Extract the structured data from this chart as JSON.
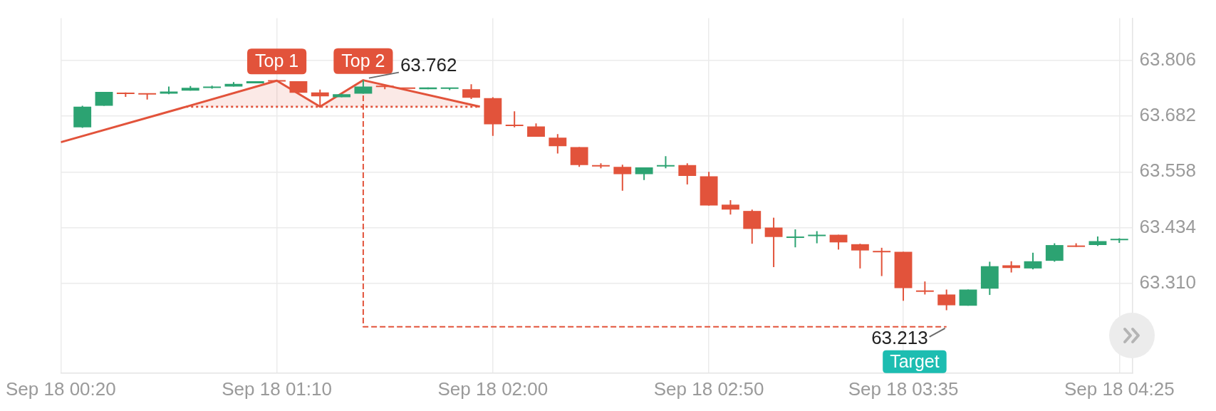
{
  "chart_data": {
    "type": "candlestick",
    "xlim": [
      "--09-18T00:20",
      "--09-18T04:28"
    ],
    "xticks": [
      {
        "value": "--09-18T00:20",
        "label": "Sep 18 00:20"
      },
      {
        "value": "--09-18T01:10",
        "label": "Sep 18 01:10"
      },
      {
        "value": "--09-18T02:00",
        "label": "Sep 18 02:00"
      },
      {
        "value": "--09-18T02:50",
        "label": "Sep 18 02:50"
      },
      {
        "value": "--09-18T03:35",
        "label": "Sep 18 03:35"
      },
      {
        "value": "--09-18T04:25",
        "label": "Sep 18 04:25"
      }
    ],
    "ylim": [
      63.11,
      63.9
    ],
    "yticks": [
      63.806,
      63.682,
      63.558,
      63.434,
      {
        "value": 63.31,
        "label": "63.310"
      }
    ],
    "grid": true,
    "series": [
      {
        "x": [
          "--09-18T00:25",
          "--09-18T00:30",
          "--09-18T00:35",
          "--09-18T00:40",
          "--09-18T00:45",
          "--09-18T00:50",
          "--09-18T00:55",
          "--09-18T01:00",
          "--09-18T01:05",
          "--09-18T01:10",
          "--09-18T01:15",
          "--09-18T01:20",
          "--09-18T01:25",
          "--09-18T01:30",
          "--09-18T01:35",
          "--09-18T01:40",
          "--09-18T01:45",
          "--09-18T01:50",
          "--09-18T01:55",
          "--09-18T02:00",
          "--09-18T02:05",
          "--09-18T02:10",
          "--09-18T02:15",
          "--09-18T02:20",
          "--09-18T02:25",
          "--09-18T02:30",
          "--09-18T02:35",
          "--09-18T02:40",
          "--09-18T02:45",
          "--09-18T02:50",
          "--09-18T02:55",
          "--09-18T03:00",
          "--09-18T03:05",
          "--09-18T03:10",
          "--09-18T03:15",
          "--09-18T03:20",
          "--09-18T03:25",
          "--09-18T03:30",
          "--09-18T03:35",
          "--09-18T03:40",
          "--09-18T03:45",
          "--09-18T03:50",
          "--09-18T03:55",
          "--09-18T04:00",
          "--09-18T04:05",
          "--09-18T04:10",
          "--09-18T04:15",
          "--09-18T04:20",
          "--09-18T04:25"
        ],
        "ohlc": [
          [
            63.657,
            63.705,
            63.656,
            63.703
          ],
          [
            63.705,
            63.736,
            63.705,
            63.736
          ],
          [
            63.734,
            63.735,
            63.725,
            63.732
          ],
          [
            63.732,
            63.732,
            63.719,
            63.731
          ],
          [
            63.732,
            63.748,
            63.731,
            63.737
          ],
          [
            63.739,
            63.749,
            63.739,
            63.745
          ],
          [
            63.745,
            63.75,
            63.743,
            63.748
          ],
          [
            63.748,
            63.758,
            63.748,
            63.754
          ],
          [
            63.755,
            63.76,
            63.755,
            63.76
          ],
          [
            63.761,
            63.761,
            63.76,
            63.76
          ],
          [
            63.76,
            63.76,
            63.734,
            63.734
          ],
          [
            63.735,
            63.741,
            63.703,
            63.726
          ],
          [
            63.724,
            63.732,
            63.724,
            63.731
          ],
          [
            63.732,
            63.762,
            63.732,
            63.748
          ],
          [
            63.75,
            63.751,
            63.742,
            63.747
          ],
          [
            63.745,
            63.745,
            63.744,
            63.744
          ],
          [
            63.742,
            63.746,
            63.742,
            63.746
          ],
          [
            63.744,
            63.745,
            63.74,
            63.745
          ],
          [
            63.742,
            63.753,
            63.72,
            63.723
          ],
          [
            63.722,
            63.724,
            63.638,
            63.664
          ],
          [
            63.662,
            63.693,
            63.657,
            63.661
          ],
          [
            63.659,
            63.666,
            63.636,
            63.636
          ],
          [
            63.634,
            63.642,
            63.599,
            63.615
          ],
          [
            63.613,
            63.613,
            63.569,
            63.573
          ],
          [
            63.572,
            63.577,
            63.566,
            63.571
          ],
          [
            63.569,
            63.574,
            63.516,
            63.553
          ],
          [
            63.553,
            63.568,
            63.54,
            63.568
          ],
          [
            63.571,
            63.593,
            63.566,
            63.572
          ],
          [
            63.573,
            63.577,
            63.53,
            63.549
          ],
          [
            63.548,
            63.558,
            63.483,
            63.483
          ],
          [
            63.485,
            63.495,
            63.463,
            63.474
          ],
          [
            63.471,
            63.474,
            63.398,
            63.431
          ],
          [
            63.434,
            63.456,
            63.346,
            63.413
          ],
          [
            63.412,
            63.43,
            63.39,
            63.413
          ],
          [
            63.416,
            63.426,
            63.399,
            63.417
          ],
          [
            63.418,
            63.418,
            63.385,
            63.401
          ],
          [
            63.397,
            63.398,
            63.343,
            63.383
          ],
          [
            63.381,
            63.389,
            63.326,
            63.38
          ],
          [
            63.38,
            63.38,
            63.271,
            63.299
          ],
          [
            63.293,
            63.314,
            63.285,
            63.292
          ],
          [
            63.285,
            63.296,
            63.25,
            63.261
          ],
          [
            63.26,
            63.296,
            63.26,
            63.296
          ],
          [
            63.298,
            63.358,
            63.284,
            63.348
          ],
          [
            63.35,
            63.359,
            63.334,
            63.344
          ],
          [
            63.343,
            63.378,
            63.341,
            63.359
          ],
          [
            63.36,
            63.399,
            63.358,
            63.395
          ],
          [
            63.393,
            63.399,
            63.391,
            63.392
          ],
          [
            63.395,
            63.414,
            63.393,
            63.404
          ],
          [
            63.407,
            63.41,
            63.4,
            63.408
          ]
        ],
        "colors": [
          "#2ca372",
          "#2ca372",
          "#e2533b",
          "#e2533b",
          "#2ca372",
          "#2ca372",
          "#2ca372",
          "#2ca372",
          "#2ca372",
          "#e2533b",
          "#e2533b",
          "#e2533b",
          "#2ca372",
          "#2ca372",
          "#e2533b",
          "#e2533b",
          "#2ca372",
          "#2ca372",
          "#e2533b",
          "#e2533b",
          "#e2533b",
          "#e2533b",
          "#e2533b",
          "#e2533b",
          "#e2533b",
          "#e2533b",
          "#2ca372",
          "#2ca372",
          "#e2533b",
          "#e2533b",
          "#e2533b",
          "#e2533b",
          "#e2533b",
          "#2ca372",
          "#2ca372",
          "#e2533b",
          "#e2533b",
          "#e2533b",
          "#e2533b",
          "#e2533b",
          "#e2533b",
          "#2ca372",
          "#2ca372",
          "#e2533b",
          "#2ca372",
          "#2ca372",
          "#e2533b",
          "#2ca372",
          "#2ca372"
        ]
      },
      {
        "type": "line",
        "color": "#e2533b",
        "line_style": "solid",
        "x": [
          "--09-18T00:20",
          "--09-18T00:49",
          "--09-18T01:10",
          "--09-18T01:20",
          "--09-18T01:30",
          "--09-18T01:57"
        ],
        "values": [
          63.624,
          63.703,
          63.761,
          63.703,
          63.762,
          63.703
        ],
        "lower": [
          null,
          63.703,
          63.703,
          63.703,
          63.703,
          63.703
        ],
        "upper": [
          null,
          63.703,
          63.761,
          63.703,
          63.762,
          63.703
        ]
      },
      {
        "type": "line",
        "color": "#e2533b",
        "line_style": "dotted",
        "x": [
          "--09-18T00:49",
          "--09-18T01:57"
        ],
        "values": [
          63.703,
          63.703
        ]
      },
      {
        "type": "line",
        "color": "#e2533b",
        "line_style": "dashed",
        "x": [
          "--09-18T01:30",
          "--09-18T01:30",
          "--09-18T03:45"
        ],
        "values": [
          63.728,
          63.213,
          63.213
        ]
      }
    ],
    "annotations": [
      {
        "text": "Top 1",
        "x": "--09-18T01:10",
        "y": 63.761
      },
      {
        "text": "Top 2",
        "x": "--09-18T01:30",
        "y": 63.762
      },
      {
        "text": "63.762",
        "x": "--09-18T01:30",
        "y": 63.762
      },
      {
        "text": "63.213",
        "x": "--09-18T03:45",
        "y": 63.213
      },
      {
        "text": "Target",
        "x": "--09-18T03:45",
        "y": 63.213
      }
    ]
  }
}
